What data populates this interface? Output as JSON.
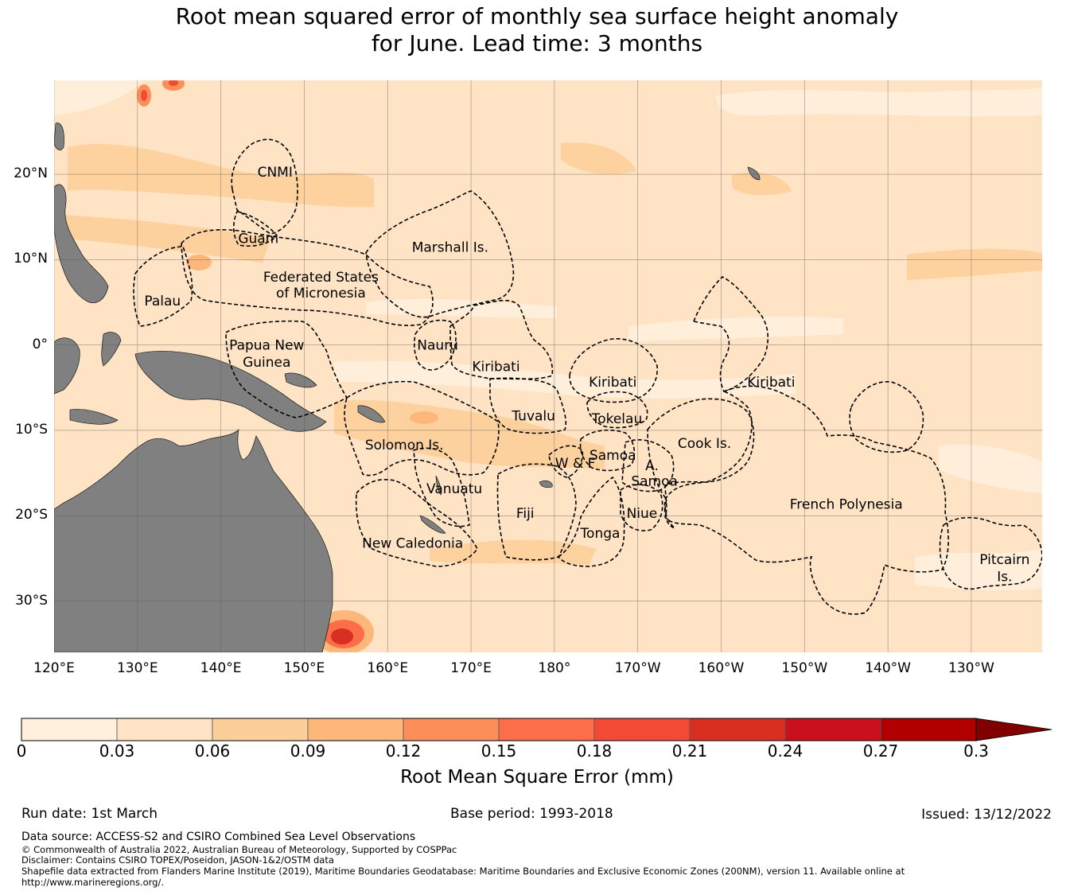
{
  "title_line1": "Root mean squared error of monthly sea surface height anomaly",
  "title_line2": "for June. Lead time: 3 months",
  "map": {
    "lat_range": [
      -36,
      31
    ],
    "lon_range": [
      120,
      238.5
    ],
    "lat_ticks": [
      {
        "value": 20,
        "label": "20°N"
      },
      {
        "value": 10,
        "label": "10°N"
      },
      {
        "value": 0,
        "label": "0°"
      },
      {
        "value": -10,
        "label": "10°S"
      },
      {
        "value": -20,
        "label": "20°S"
      },
      {
        "value": -30,
        "label": "30°S"
      }
    ],
    "lon_ticks": [
      {
        "value": 120,
        "label": "120°E"
      },
      {
        "value": 130,
        "label": "130°E"
      },
      {
        "value": 140,
        "label": "140°E"
      },
      {
        "value": 150,
        "label": "150°E"
      },
      {
        "value": 160,
        "label": "160°E"
      },
      {
        "value": 170,
        "label": "170°E"
      },
      {
        "value": 180,
        "label": "180°"
      },
      {
        "value": 190,
        "label": "170°W"
      },
      {
        "value": 200,
        "label": "160°W"
      },
      {
        "value": 210,
        "label": "150°W"
      },
      {
        "value": 220,
        "label": "140°W"
      },
      {
        "value": 230,
        "label": "130°W"
      }
    ],
    "colors": {
      "ocean": "#fee3c4",
      "ocean_low": "#fff0dd",
      "ocean_mid": "#fdcf98",
      "land": "#808080",
      "grid": "#555555"
    },
    "eez_labels": [
      {
        "text": "CNMI",
        "lon": 146.5,
        "lat": 20.3
      },
      {
        "text": "Guam",
        "lon": 144.5,
        "lat": 12.5
      },
      {
        "text": "Marshall Is.",
        "lon": 167.5,
        "lat": 11.5
      },
      {
        "text": "Federated States",
        "lon": 152,
        "lat": 8.0
      },
      {
        "text": "of Micronesia",
        "lon": 152,
        "lat": 6.1
      },
      {
        "text": "Palau",
        "lon": 133,
        "lat": 5.2
      },
      {
        "text": "Papua New",
        "lon": 145.5,
        "lat": 0.0
      },
      {
        "text": "Guinea",
        "lon": 145.5,
        "lat": -2.0
      },
      {
        "text": "Nauru",
        "lon": 166,
        "lat": 0.0
      },
      {
        "text": "Kiribati",
        "lon": 173,
        "lat": -2.5
      },
      {
        "text": "Kiribati",
        "lon": 187,
        "lat": -4.3
      },
      {
        "text": "Kiribati",
        "lon": 206,
        "lat": -4.3
      },
      {
        "text": "Tuvalu",
        "lon": 177.5,
        "lat": -8.3
      },
      {
        "text": "Tokelau",
        "lon": 187.5,
        "lat": -8.6
      },
      {
        "text": "Cook Is.",
        "lon": 198,
        "lat": -11.5
      },
      {
        "text": "Solomon Is.",
        "lon": 162,
        "lat": -11.7
      },
      {
        "text": "Samoa",
        "lon": 187,
        "lat": -12.9
      },
      {
        "text": "W & F",
        "lon": 182.5,
        "lat": -13.8
      },
      {
        "text": "A.",
        "lon": 191.7,
        "lat": -14.1
      },
      {
        "text": "Samoa",
        "lon": 192,
        "lat": -15.9
      },
      {
        "text": "Vanuatu",
        "lon": 168,
        "lat": -16.8
      },
      {
        "text": "Fiji",
        "lon": 176.5,
        "lat": -19.7
      },
      {
        "text": "Niue",
        "lon": 190.5,
        "lat": -19.7
      },
      {
        "text": "French Polynesia",
        "lon": 215,
        "lat": -18.6
      },
      {
        "text": "Tonga",
        "lon": 185.5,
        "lat": -22.0
      },
      {
        "text": "New Caledonia",
        "lon": 163,
        "lat": -23.2
      },
      {
        "text": "Pitcairn",
        "lon": 234,
        "lat": -25.1
      },
      {
        "text": "Is.",
        "lon": 234,
        "lat": -27.1
      }
    ]
  },
  "colorbar": {
    "label": "Root Mean Square Error (mm)",
    "ticks": [
      "0",
      "0.03",
      "0.06",
      "0.09",
      "0.12",
      "0.15",
      "0.18",
      "0.21",
      "0.24",
      "0.27",
      "0.3"
    ],
    "colors": [
      "#fff0dd",
      "#fee3c4",
      "#fdcf98",
      "#fdb77a",
      "#fc8e59",
      "#fc6d4a",
      "#f34a36",
      "#d92f21",
      "#c9101e",
      "#b00000"
    ],
    "extend_color": "#800000"
  },
  "meta": {
    "run_date": "Run date: 1st March",
    "base_period": "Base period: 1993-2018",
    "issued": "Issued: 13/12/2022"
  },
  "footer": {
    "data_source": "Data source: ACCESS-S2 and CSIRO Combined Sea Level Observations",
    "copyright": "© Commonwealth of Australia 2022, Australian Bureau of Meteorology, Supported by COSPPac",
    "disclaimer": "Disclaimer: Contains CSIRO TOPEX/Poseidon, JASON-1&2/OSTM data",
    "shapefile_line1": "Shapefile data extracted from Flanders Marine Institute (2019), Maritime Boundaries Geodatabase: Maritime Boundaries and Exclusive Economic Zones (200NM), version 11. Available online at",
    "shapefile_line2": "http://www.marineregions.org/."
  }
}
